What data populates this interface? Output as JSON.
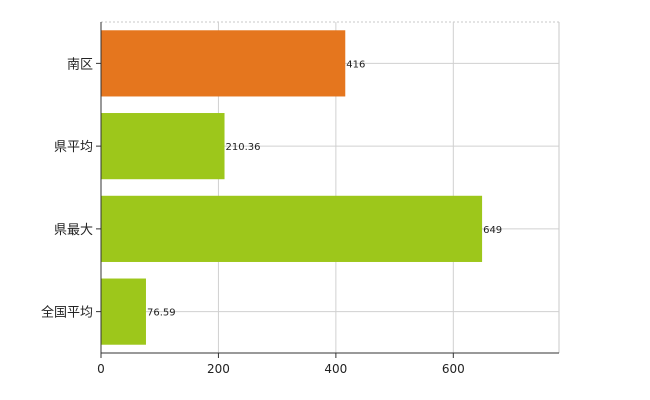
{
  "chart_data": {
    "type": "bar",
    "orientation": "horizontal",
    "categories": [
      "南区",
      "県平均",
      "県最大",
      "全国平均"
    ],
    "values": [
      416,
      210.36,
      649,
      76.59
    ],
    "value_labels": [
      "416",
      "210.36",
      "649",
      "76.59"
    ],
    "bar_colors": [
      "#e5761e",
      "#9dc71b",
      "#9dc71b",
      "#9dc71b"
    ],
    "xlim": [
      0,
      780
    ],
    "xticks": [
      0,
      200,
      400,
      600
    ],
    "xtick_labels": [
      "0",
      "200",
      "400",
      "600"
    ],
    "grid": true,
    "legend": "none"
  }
}
